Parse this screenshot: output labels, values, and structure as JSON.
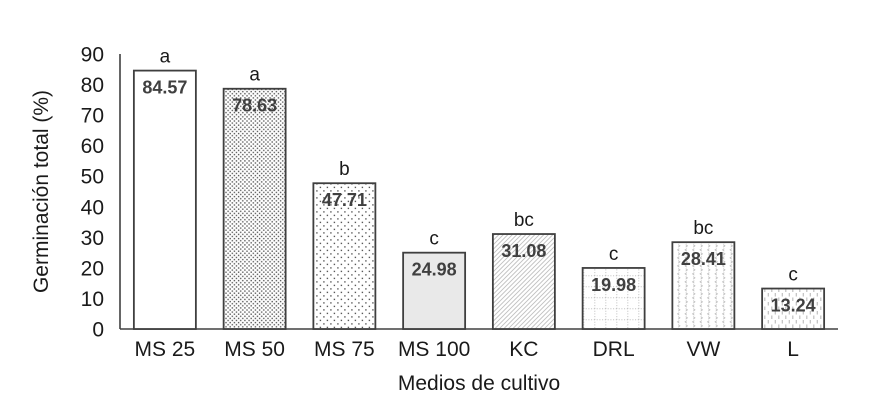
{
  "chart_data": {
    "type": "bar",
    "title": "",
    "xlabel": "Medios de cultivo",
    "ylabel": "Germinación total (%)",
    "categories": [
      "MS 25",
      "MS 50",
      "MS 75",
      "MS 100",
      "KC",
      "DRL",
      "VW",
      "L"
    ],
    "values": [
      84.57,
      78.63,
      47.71,
      24.98,
      31.08,
      19.98,
      28.41,
      13.24
    ],
    "value_labels": [
      "84.57",
      "78.63",
      "47.71",
      "24.98",
      "31.08",
      "19.98",
      "28.41",
      "13.24"
    ],
    "significance_letters": [
      "a",
      "a",
      "b",
      "c",
      "bc",
      "c",
      "bc",
      "c"
    ],
    "bar_patterns": [
      "plain-white",
      "dots-dense",
      "dots-sparse",
      "solid-light-gray",
      "diagonal-hatch",
      "dotted-grid",
      "confetti-chevrons",
      "vertical-dashes"
    ],
    "ylim": [
      0,
      90
    ],
    "ytick_step": 10,
    "yticks": [
      0,
      10,
      20,
      30,
      40,
      50,
      60,
      70,
      80,
      90
    ],
    "grid": "off",
    "legend": "none",
    "colors": {
      "background": "#ffffff",
      "bar_stroke": "#3f3f3f",
      "axis_line": "#404040",
      "tick_label": "#1a1a1a",
      "value_label": "#404040",
      "pattern_dark_dots": "#595959",
      "pattern_light_lines": "#bfbfbf",
      "solid_gray_fill": "#e9e9e9"
    }
  }
}
